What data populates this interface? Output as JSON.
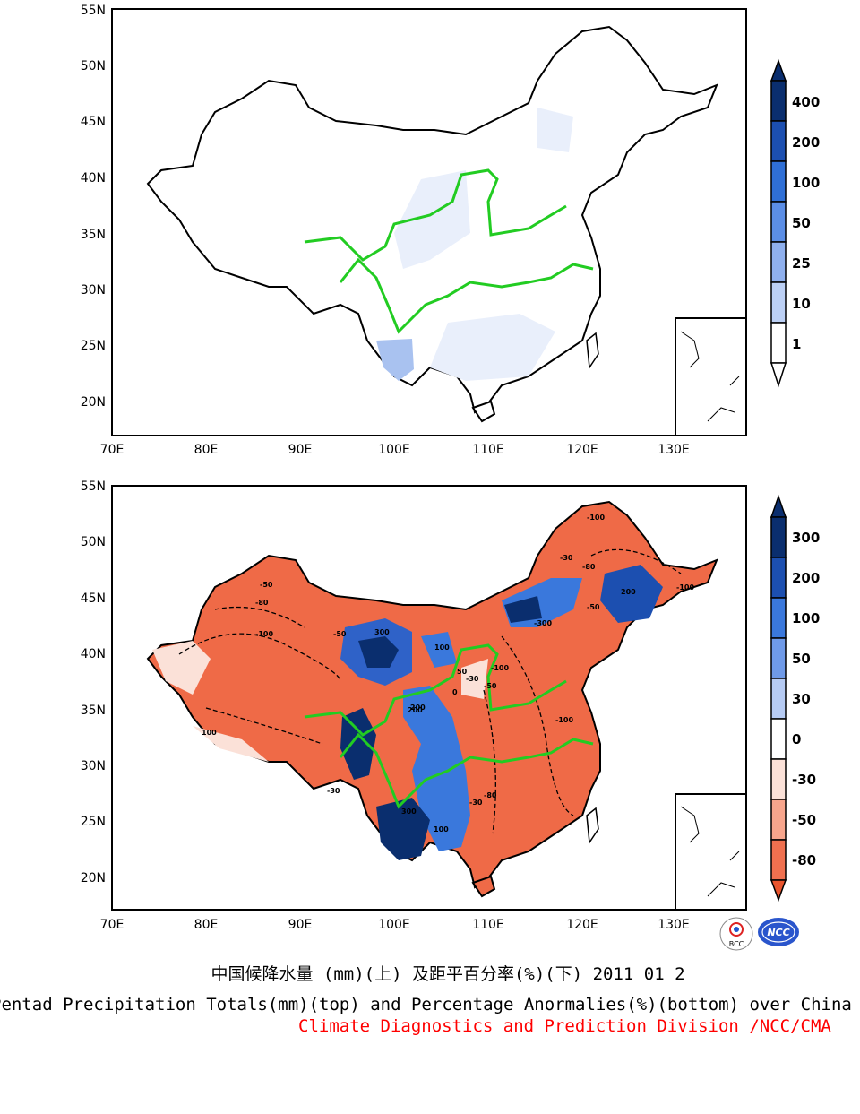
{
  "top_panel": {
    "lat_labels": [
      "55N",
      "50N",
      "45N",
      "40N",
      "35N",
      "30N",
      "25N",
      "20N"
    ],
    "lon_labels": [
      "70E",
      "80E",
      "90E",
      "100E",
      "110E",
      "120E",
      "130E"
    ],
    "colorbar": {
      "labels": [
        "400",
        "200",
        "100",
        "50",
        "25",
        "10",
        "1"
      ],
      "colors": [
        "#0a2e6e",
        "#1c4fb0",
        "#2f6fd6",
        "#5b8ee6",
        "#8fb0ee",
        "#bcd0f5",
        "#ffffff"
      ]
    }
  },
  "bottom_panel": {
    "lat_labels": [
      "55N",
      "50N",
      "45N",
      "40N",
      "35N",
      "30N",
      "25N",
      "20N"
    ],
    "lon_labels": [
      "70E",
      "80E",
      "90E",
      "100E",
      "110E",
      "120E",
      "130E"
    ],
    "colorbar": {
      "labels": [
        "300",
        "200",
        "100",
        "50",
        "30",
        "0",
        "-30",
        "-50",
        "-80"
      ],
      "colors": [
        "#0a2e6e",
        "#1c4fb0",
        "#3a78dc",
        "#6f9ae8",
        "#b6cbf4",
        "#ffffff",
        "#fbe1d8",
        "#f7a58c",
        "#f0704f",
        "#e9552e"
      ]
    },
    "contour_labels": [
      "-100",
      "-30",
      "-50",
      "-80",
      "-100",
      "300",
      "200",
      "100",
      "50",
      "0",
      "-30",
      "-100",
      "-80",
      "-50",
      "200",
      "-100",
      "-300",
      "100",
      "-30",
      "-50",
      "-80",
      "-100",
      "100",
      "300",
      "-30",
      "-50",
      "200"
    ]
  },
  "captions": {
    "cn": "中国候降水量 (mm)(上) 及距平百分率(%)(下) 2011 01 2",
    "en": "Pentad Precipitation Totals(mm)(top) and Percentage Anormalies(%)(bottom) over China",
    "division": "Climate Diagnostics and Prediction Division /NCC/CMA"
  },
  "logos": {
    "left": "BCC",
    "right": "NCC"
  },
  "colors": {
    "river": "#22cc22",
    "division_text": "#ff0000"
  }
}
